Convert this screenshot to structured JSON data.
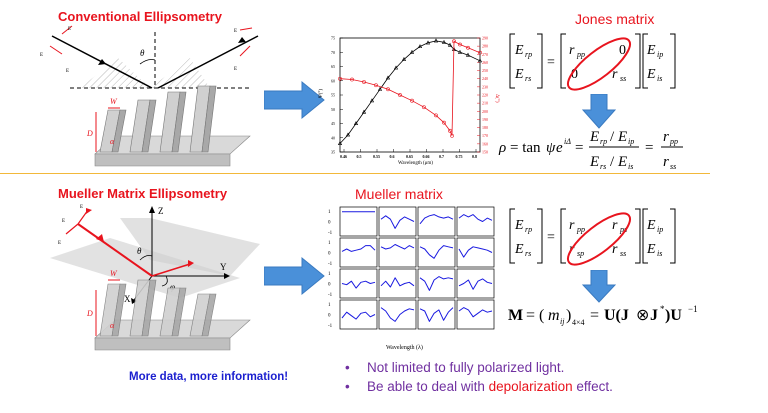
{
  "top": {
    "title": "Conventional Ellipsometry",
    "jones_title": "Jones matrix",
    "diagram_labels": {
      "theta": "θ",
      "W": "W",
      "D": "D",
      "alpha": "α"
    },
    "chart": {
      "xlabel": "Wavelength (μm)",
      "ylabel_left": "Ψ(°)",
      "ylabel_right": "Δ(°)",
      "xticks": [
        "0.46",
        "0.5",
        "0.55",
        "0.6",
        "0.65",
        "0.66",
        "0.7",
        "0.75",
        "0.8"
      ],
      "yticks_left": [
        "75",
        "70",
        "65",
        "60",
        "55",
        "50",
        "45",
        "40",
        "35"
      ],
      "yticks_right": [
        "290",
        "280",
        "270",
        "260",
        "250",
        "240",
        "230",
        "220",
        "210",
        "200",
        "190",
        "180",
        "170",
        "160",
        "150"
      ]
    }
  },
  "bottom": {
    "title": "Mueller Matrix Ellipsometry",
    "mueller_title": "Mueller matrix",
    "diagram_labels": {
      "Z": "Z",
      "X": "X",
      "Y": "Y",
      "theta": "θ",
      "phi": "φ",
      "W": "W",
      "D": "D",
      "alpha": "α"
    },
    "grid_xlabel": "Wavelength (λ)",
    "grid_yticks": [
      "1",
      "0",
      "-1"
    ],
    "note": "More data, more information!",
    "bullets": [
      {
        "text": "Not limited to fully polarized light."
      },
      {
        "prefix": "Be able to deal with ",
        "highlight": "depolarization",
        "suffix": " effect."
      }
    ]
  },
  "colors": {
    "title_red": "#e8141e",
    "arrow_blue": "#4a90d9",
    "note_blue": "#1b1fcf",
    "bullet_purple": "#7030a0",
    "divider": "#f2b83a",
    "curve_blue": "#1a1ae0"
  },
  "chart_data": {
    "type": "line",
    "xlabel": "Wavelength (μm)",
    "xlim": [
      0.45,
      0.8
    ],
    "series": [
      {
        "axis": "left",
        "color": "#000000",
        "marker": "triangle",
        "x": [
          0.45,
          0.47,
          0.49,
          0.51,
          0.53,
          0.55,
          0.57,
          0.59,
          0.61,
          0.63,
          0.65,
          0.67,
          0.69,
          0.71,
          0.725,
          0.735,
          0.75,
          0.77,
          0.8
        ],
        "y": [
          38,
          41,
          45,
          49,
          53,
          57,
          61,
          64.5,
          67.5,
          70,
          72,
          73.3,
          74,
          73.5,
          72.5,
          71,
          70,
          69,
          67
        ]
      },
      {
        "axis": "right",
        "color": "#e8141e",
        "marker": "circle",
        "x": [
          0.45,
          0.48,
          0.51,
          0.54,
          0.57,
          0.6,
          0.63,
          0.66,
          0.69,
          0.71,
          0.725,
          0.73,
          0.735,
          0.75,
          0.77,
          0.8
        ],
        "y": [
          240,
          239,
          236,
          232,
          227,
          220,
          213,
          205,
          195,
          186,
          176,
          170,
          286,
          282,
          278,
          272
        ]
      }
    ],
    "ylim_left": [
      35,
      75
    ],
    "ylim_right": [
      150,
      290
    ]
  },
  "mueller_curves": {
    "rows": 4,
    "cols": 4,
    "shapes": [
      [
        [
          0.85,
          0.85,
          0.85,
          0.85,
          0.85,
          0.85,
          0.85,
          0.85
        ],
        [
          0.2,
          0.5,
          0.2,
          -0.6,
          0.1,
          0.4,
          0.2,
          0.0
        ],
        [
          -0.2,
          0.3,
          0.5,
          0.6,
          0.4,
          0.3,
          0.4,
          0.2
        ],
        [
          0.3,
          0.6,
          0.4,
          0.6,
          0.2,
          0.0,
          0.3,
          0.1
        ]
      ],
      [
        [
          0.1,
          0.3,
          0.1,
          0.2,
          0.3,
          0.6,
          0.6,
          0.2
        ],
        [
          0.5,
          0.3,
          0.4,
          0.7,
          0.5,
          0.3,
          0.6,
          0.4
        ],
        [
          0.5,
          0.3,
          -0.2,
          -0.5,
          0.2,
          0.6,
          0.5,
          0.4
        ],
        [
          0.3,
          -0.4,
          0.2,
          0.5,
          0.4,
          0.3,
          0.2,
          0.0
        ]
      ],
      [
        [
          0.0,
          -0.1,
          0.2,
          -0.4,
          0.1,
          0.2,
          0.0,
          0.1
        ],
        [
          -0.2,
          0.2,
          -0.3,
          0.5,
          -0.2,
          0.0,
          0.1,
          -0.2
        ],
        [
          0.5,
          0.2,
          -0.6,
          0.3,
          0.6,
          0.4,
          0.5,
          0.4
        ],
        [
          -0.2,
          0.0,
          0.3,
          -0.5,
          0.2,
          0.4,
          0.1,
          0.0
        ]
      ],
      [
        [
          -0.3,
          0.2,
          -0.1,
          -0.4,
          0.1,
          0.2,
          -0.2,
          0.0
        ],
        [
          0.6,
          0.3,
          -0.3,
          -0.6,
          0.0,
          0.3,
          0.5,
          0.4
        ],
        [
          0.5,
          0.3,
          -0.6,
          0.1,
          0.4,
          -0.5,
          0.2,
          0.6
        ],
        [
          0.3,
          0.6,
          0.4,
          -0.2,
          0.1,
          0.4,
          0.2,
          0.3
        ]
      ]
    ]
  }
}
